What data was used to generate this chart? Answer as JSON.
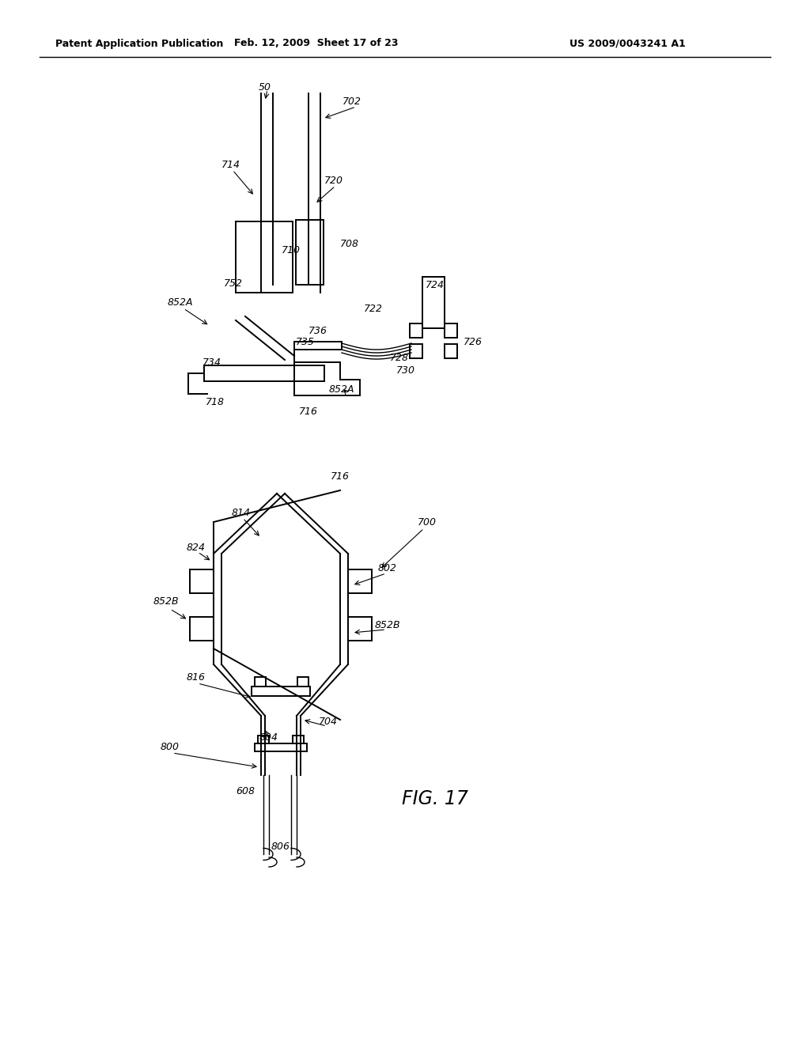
{
  "background_color": "#ffffff",
  "header_left": "Patent Application Publication",
  "header_mid": "Feb. 12, 2009  Sheet 17 of 23",
  "header_right": "US 2009/0043241 A1",
  "fig_label": "FIG. 17"
}
